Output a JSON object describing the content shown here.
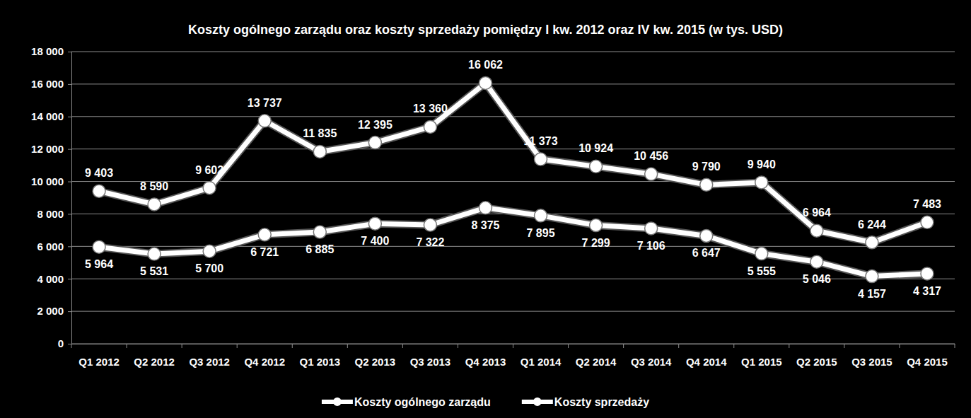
{
  "chart_data": {
    "type": "line",
    "title": "Koszty ogólnego zarządu oraz koszty sprzedaży pomiędzy I kw. 2012 oraz IV kw. 2015 (w tys. USD)",
    "categories": [
      "Q1 2012",
      "Q2 2012",
      "Q3 2012",
      "Q4 2012",
      "Q1 2013",
      "Q2 2013",
      "Q3 2013",
      "Q4 2013",
      "Q1 2014",
      "Q2 2014",
      "Q3 2014",
      "Q4 2014",
      "Q1 2015",
      "Q2 2015",
      "Q3 2015",
      "Q4 2015"
    ],
    "series": [
      {
        "name": "Koszty ogólnego zarządu",
        "color": "#ffffff",
        "marker": "circle",
        "values": [
          9403,
          8590,
          9602,
          13737,
          11835,
          12395,
          13360,
          16062,
          11373,
          10924,
          10456,
          9790,
          9940,
          6964,
          6244,
          7483
        ],
        "value_labels": [
          "9 403",
          "8 590",
          "9 602",
          "13 737",
          "11 835",
          "12 395",
          "13 360",
          "16 062",
          "11 373",
          "10 924",
          "10 456",
          "9 790",
          "9 940",
          "6 964",
          "6 244",
          "7 483"
        ]
      },
      {
        "name": "Koszty sprzedaży",
        "color": "#ffffff",
        "marker": "circle",
        "values": [
          5964,
          5531,
          5700,
          6721,
          6885,
          7400,
          7322,
          8375,
          7895,
          7299,
          7106,
          6647,
          5555,
          5046,
          4157,
          4317
        ],
        "value_labels": [
          "5 964",
          "5 531",
          "5 700",
          "6 721",
          "6 885",
          "7 400",
          "7 322",
          "8 375",
          "7 895",
          "7 299",
          "7 106",
          "6 647",
          "5 555",
          "5 046",
          "4 157",
          "4 317"
        ]
      }
    ],
    "ylim": [
      0,
      18000
    ],
    "yticks": [
      0,
      {
        "value": 2000,
        "label": "2 000"
      },
      {
        "value": 4000,
        "label": "4 000"
      },
      {
        "value": 6000,
        "label": "6 000"
      },
      {
        "value": 8000,
        "label": "8 000"
      },
      {
        "value": 10000,
        "label": "10 000"
      },
      {
        "value": 12000,
        "label": "12 000"
      },
      {
        "value": 14000,
        "label": "14 000"
      },
      {
        "value": 16000,
        "label": "16 000"
      },
      {
        "value": 18000,
        "label": "18 000"
      }
    ],
    "grid": true,
    "data_labels": true,
    "legend": "bottom"
  }
}
